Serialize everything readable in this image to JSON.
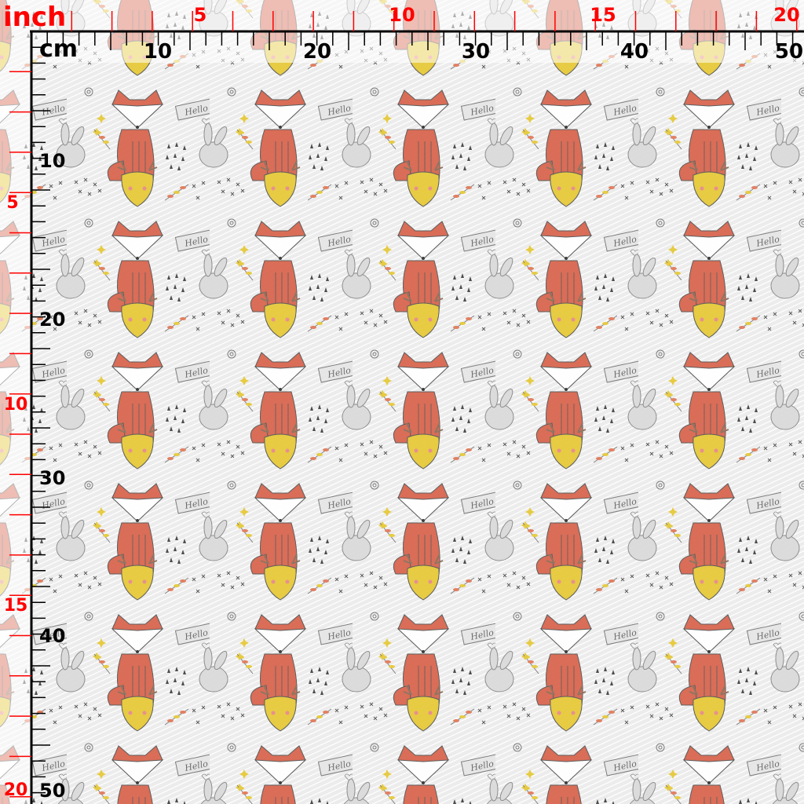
{
  "fabric": {
    "motifs": [
      "fox",
      "bunny",
      "deer",
      "hello-banner",
      "leaf-sprig",
      "rain-drops",
      "cross-stitches",
      "spiral",
      "heart",
      "sparkle"
    ],
    "banner_text": "Hello",
    "colors": {
      "background": "#ececec",
      "fox": "#d8664f",
      "deer": "#e6c93a",
      "bunny": "#d9d9d9",
      "outline": "#555555",
      "leaf_red": "#e07a5a",
      "leaf_yellow": "#e6c93a"
    }
  },
  "ruler": {
    "inch_unit": "inch",
    "cm_unit": "cm",
    "top_inch_labels": [
      "5",
      "10",
      "15",
      "20"
    ],
    "top_cm_labels": [
      "10",
      "20",
      "30",
      "40",
      "50"
    ],
    "left_inch_labels": [
      "5",
      "10",
      "15",
      "20"
    ],
    "left_cm_labels": [
      "10",
      "20",
      "30",
      "40",
      "50"
    ],
    "colors": {
      "inch": "#ff0000",
      "cm": "#000000"
    }
  }
}
